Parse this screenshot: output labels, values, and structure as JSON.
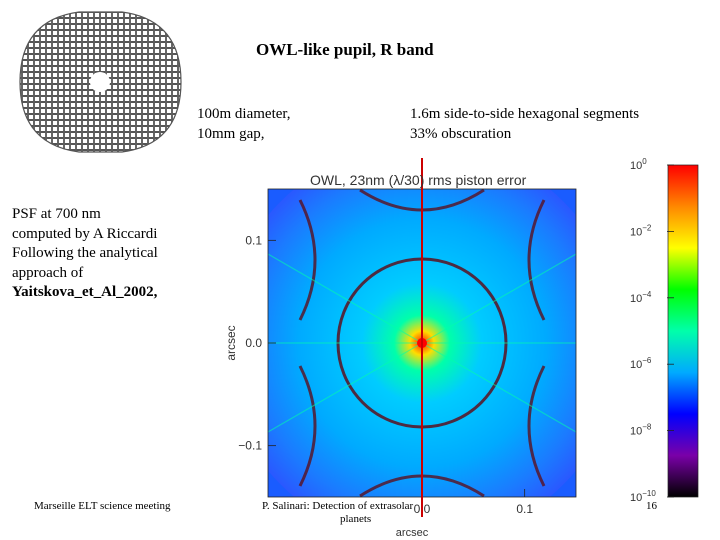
{
  "slide": {
    "title": "OWL-like pupil, R band",
    "specs_left": [
      "100m diameter,",
      "10mm gap,"
    ],
    "specs_right": [
      "1.6m side-to-side hexagonal segments",
      "33% obscuration"
    ],
    "caption": [
      "PSF at 700 nm",
      "computed by A Riccardi",
      "Following the analytical",
      "approach of",
      "Yaitskova_et_Al_2002,"
    ]
  },
  "footer": {
    "left": "Marseille ELT science meeting",
    "center_line1": "P. Salinari: Detection of extrasolar",
    "center_line2": "planets",
    "page_number": "16"
  },
  "pupil": {
    "shape": "hexagonal-segment mirror with central obscuration",
    "color": "#555555"
  },
  "chart_data": {
    "type": "heatmap",
    "title": "OWL, 23nm (λ/30) rms piston error",
    "xlabel": "arcsec",
    "ylabel": "arcsec",
    "xticks": [
      "0.0",
      "0.1"
    ],
    "yticks": [
      "0.1",
      "0.0",
      "−0.1"
    ],
    "xlim": [
      -0.15,
      0.15
    ],
    "ylim": [
      -0.15,
      0.15
    ],
    "colorbar": {
      "scale": "log",
      "range": [
        1e-10,
        1
      ],
      "ticks": [
        {
          "base": "10",
          "exp": "0",
          "value": 1
        },
        {
          "base": "10",
          "exp": "−2",
          "value": 0.01
        },
        {
          "base": "10",
          "exp": "−4",
          "value": 0.0001
        },
        {
          "base": "10",
          "exp": "−6",
          "value": 1e-06
        },
        {
          "base": "10",
          "exp": "−8",
          "value": 1e-08
        },
        {
          "base": "10",
          "exp": "−10",
          "value": 1e-10
        }
      ],
      "colors": [
        "#000000",
        "#7a00a8",
        "#0000ff",
        "#00aaff",
        "#00ffaa",
        "#00ff00",
        "#ffff00",
        "#ff8800",
        "#ff0000"
      ]
    },
    "annotation": {
      "type": "vertical-line",
      "x": 0.0,
      "color": "#cc0000"
    }
  }
}
